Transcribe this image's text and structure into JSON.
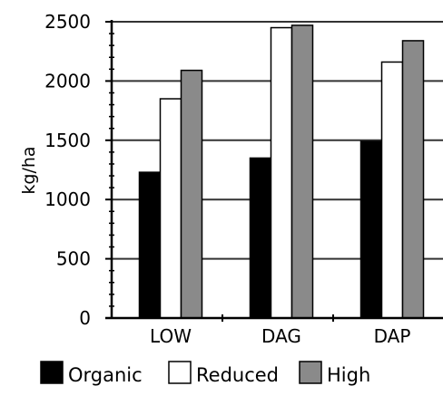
{
  "chart_data": {
    "type": "bar",
    "title": "",
    "xlabel": "",
    "ylabel": "kg/ha",
    "categories": [
      "LOW",
      "DAG",
      "DAP"
    ],
    "series": [
      {
        "name": "Organic",
        "values": [
          1230,
          1350,
          1490
        ]
      },
      {
        "name": "Reduced",
        "values": [
          1850,
          2450,
          2160
        ]
      },
      {
        "name": "High",
        "values": [
          2090,
          2470,
          2340
        ]
      }
    ],
    "ylim": [
      0,
      2500
    ],
    "yticks": [
      "0",
      "500",
      "1000",
      "1500",
      "2000",
      "2500"
    ],
    "grid": "horizontal",
    "legend": "bottom"
  },
  "colors": {
    "Organic": "#000000",
    "Reduced": "#ffffff",
    "High": "#8a8a8a",
    "axis": "#000000",
    "grid": "#333333"
  }
}
